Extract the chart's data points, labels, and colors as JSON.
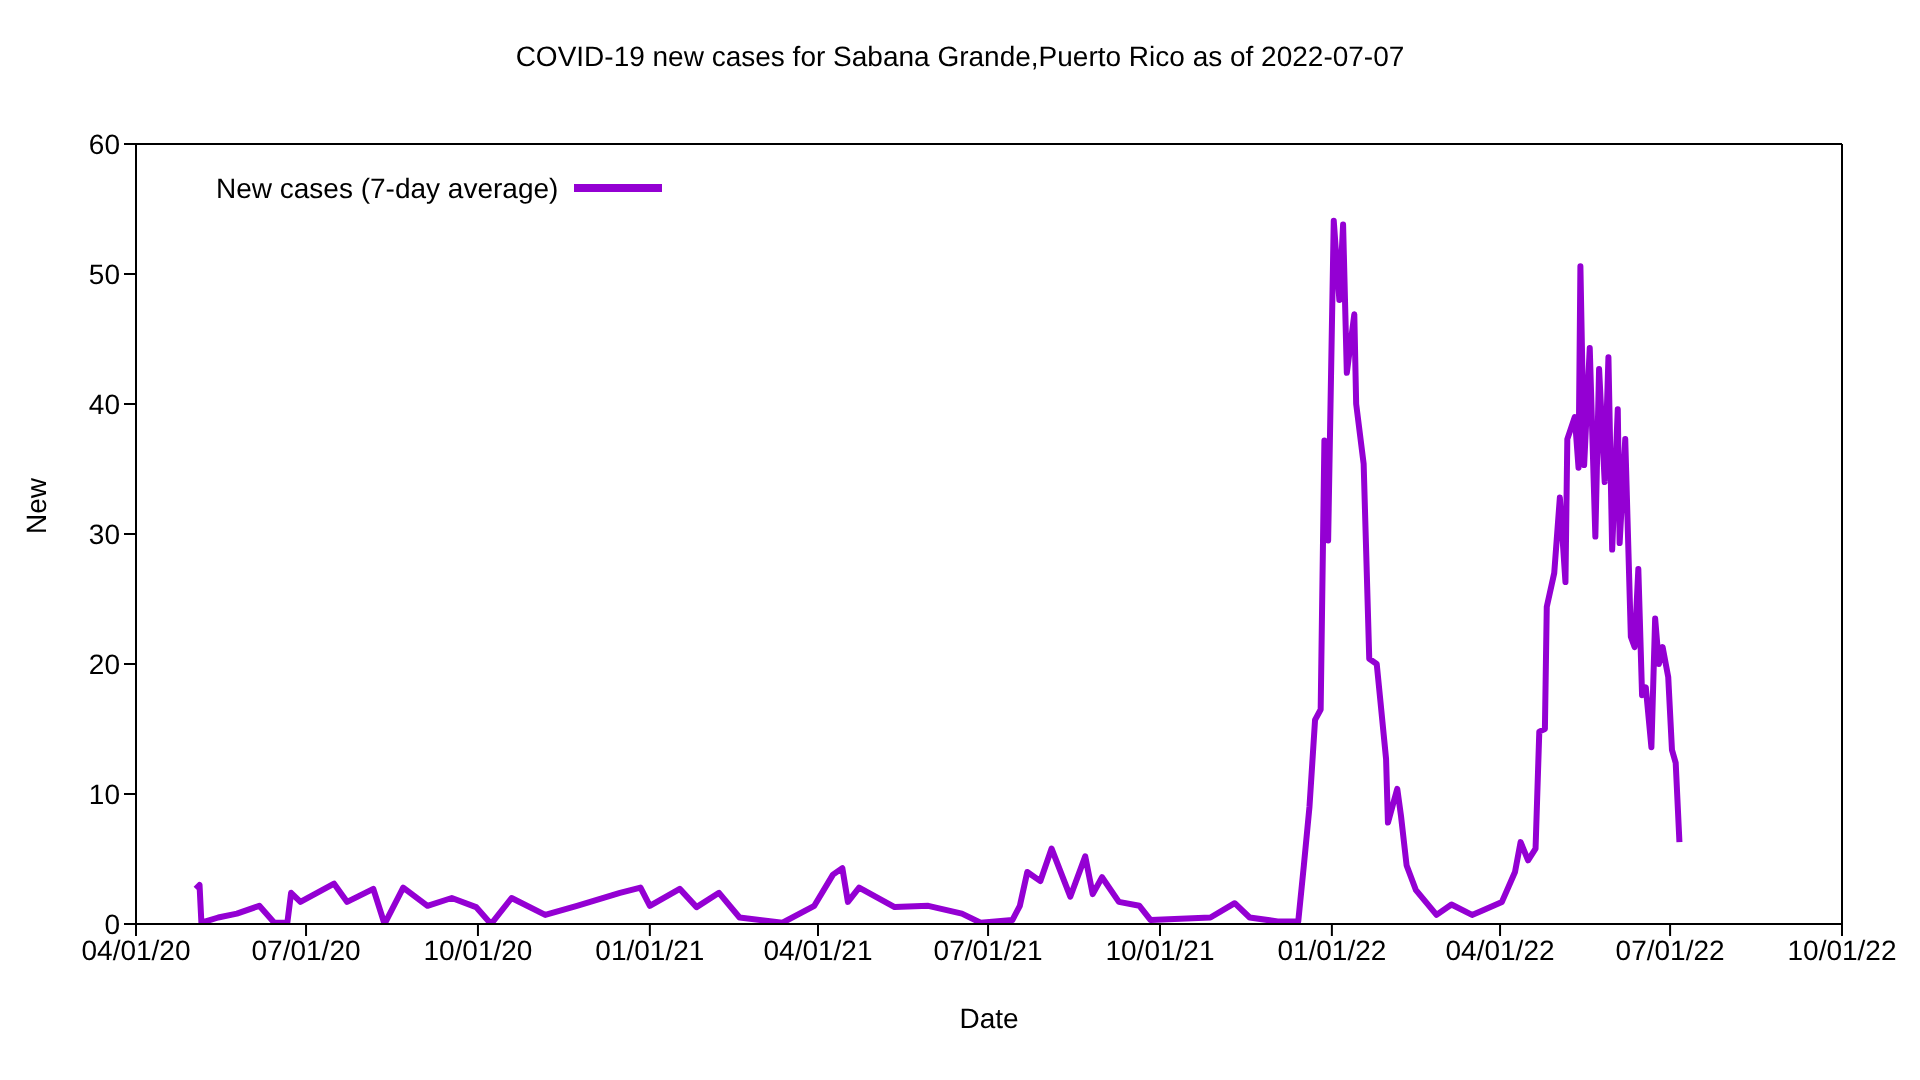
{
  "chart_data": {
    "type": "line",
    "title": "COVID-19 new cases for Sabana Grande,Puerto Rico as of 2022-07-07",
    "xlabel": "Date",
    "ylabel": "New",
    "x": [
      "2020-05-03",
      "2020-05-05",
      "2020-05-06",
      "2020-05-15",
      "2020-05-25",
      "2020-06-06",
      "2020-06-14",
      "2020-06-21",
      "2020-06-23",
      "2020-06-28",
      "2020-07-16",
      "2020-07-23",
      "2020-08-06",
      "2020-08-12",
      "2020-08-22",
      "2020-09-04",
      "2020-09-17",
      "2020-09-30",
      "2020-10-08",
      "2020-10-19",
      "2020-11-06",
      "2020-11-23",
      "2020-12-16",
      "2020-12-27",
      "2021-01-01",
      "2021-01-17",
      "2021-01-26",
      "2021-02-07",
      "2021-02-18",
      "2021-03-13",
      "2021-03-30",
      "2021-04-09",
      "2021-04-14",
      "2021-04-17",
      "2021-04-23",
      "2021-05-12",
      "2021-05-30",
      "2021-06-17",
      "2021-06-27",
      "2021-07-14",
      "2021-07-18",
      "2021-07-22",
      "2021-07-29",
      "2021-08-04",
      "2021-08-14",
      "2021-08-22",
      "2021-08-26",
      "2021-08-31",
      "2021-09-09",
      "2021-09-20",
      "2021-09-26",
      "2021-10-28",
      "2021-11-10",
      "2021-11-18",
      "2021-12-03",
      "2021-12-14",
      "2021-12-17",
      "2021-12-20",
      "2021-12-23",
      "2021-12-26",
      "2021-12-28",
      "2021-12-30",
      "2022-01-02",
      "2022-01-05",
      "2022-01-07",
      "2022-01-09",
      "2022-01-13",
      "2022-01-14",
      "2022-01-18",
      "2022-01-21",
      "2022-01-25",
      "2022-01-27",
      "2022-01-30",
      "2022-01-31",
      "2022-02-05",
      "2022-02-07",
      "2022-02-10",
      "2022-02-15",
      "2022-02-26",
      "2022-03-06",
      "2022-03-17",
      "2022-03-22",
      "2022-04-02",
      "2022-04-09",
      "2022-04-12",
      "2022-04-16",
      "2022-04-20",
      "2022-04-22",
      "2022-04-25",
      "2022-04-26",
      "2022-04-30",
      "2022-05-03",
      "2022-05-06",
      "2022-05-07",
      "2022-05-11",
      "2022-05-13",
      "2022-05-14",
      "2022-05-16",
      "2022-05-19",
      "2022-05-22",
      "2022-05-24",
      "2022-05-27",
      "2022-05-29",
      "2022-05-31",
      "2022-06-03",
      "2022-06-04",
      "2022-06-07",
      "2022-06-10",
      "2022-06-12",
      "2022-06-14",
      "2022-06-16",
      "2022-06-18",
      "2022-06-21",
      "2022-06-23",
      "2022-06-25",
      "2022-06-27",
      "2022-06-30",
      "2022-07-02",
      "2022-07-04",
      "2022-07-06"
    ],
    "series": [
      {
        "name": "New cases (7-day average)",
        "color": "#9400d3",
        "values": [
          2.7,
          3.0,
          0.1,
          0.5,
          0.8,
          1.4,
          0.1,
          0.1,
          2.4,
          1.7,
          3.1,
          1.7,
          2.7,
          0.0,
          2.8,
          1.4,
          2.0,
          1.3,
          0.0,
          2.0,
          0.7,
          1.4,
          2.4,
          2.8,
          1.4,
          2.7,
          1.3,
          2.4,
          0.5,
          0.1,
          1.4,
          3.8,
          4.3,
          1.7,
          2.8,
          1.3,
          1.4,
          0.8,
          0.1,
          0.3,
          1.4,
          4.0,
          3.3,
          5.8,
          2.1,
          5.2,
          2.3,
          3.6,
          1.7,
          1.4,
          0.3,
          0.5,
          1.6,
          0.5,
          0.2,
          0.2,
          4.5,
          9.0,
          15.7,
          16.5,
          37.2,
          29.5,
          54.1,
          48.0,
          53.8,
          42.4,
          46.9,
          40.0,
          35.4,
          20.4,
          20.0,
          17.1,
          12.7,
          7.8,
          10.4,
          8.3,
          4.5,
          2.6,
          0.7,
          1.5,
          0.7,
          1.0,
          1.7,
          4.0,
          6.3,
          4.9,
          5.8,
          14.8,
          15.0,
          24.4,
          27.0,
          32.8,
          26.3,
          37.3,
          39.0,
          35.1,
          50.6,
          35.3,
          44.3,
          29.8,
          42.7,
          34.0,
          43.6,
          28.8,
          39.6,
          29.3,
          37.3,
          22.1,
          21.3,
          27.3,
          17.6,
          18.2,
          13.6,
          23.5,
          20.0,
          21.3,
          19.0,
          13.4,
          12.4,
          6.3
        ]
      }
    ],
    "xlim": [
      "2020-04-01",
      "2022-10-01"
    ],
    "xticks": [
      {
        "value": "2020-04-01",
        "label": "04/01/20"
      },
      {
        "value": "2020-07-01",
        "label": "07/01/20"
      },
      {
        "value": "2020-10-01",
        "label": "10/01/20"
      },
      {
        "value": "2021-01-01",
        "label": "01/01/21"
      },
      {
        "value": "2021-04-01",
        "label": "04/01/21"
      },
      {
        "value": "2021-07-01",
        "label": "07/01/21"
      },
      {
        "value": "2021-10-01",
        "label": "10/01/21"
      },
      {
        "value": "2022-01-01",
        "label": "01/01/22"
      },
      {
        "value": "2022-04-01",
        "label": "04/01/22"
      },
      {
        "value": "2022-07-01",
        "label": "07/01/22"
      },
      {
        "value": "2022-10-01",
        "label": "10/01/22"
      }
    ],
    "ylim": [
      0,
      60
    ],
    "yticks": [
      0,
      10,
      20,
      30,
      40,
      50,
      60
    ],
    "grid": false,
    "legend": "top left",
    "marker": "none",
    "line_style": "solid"
  }
}
